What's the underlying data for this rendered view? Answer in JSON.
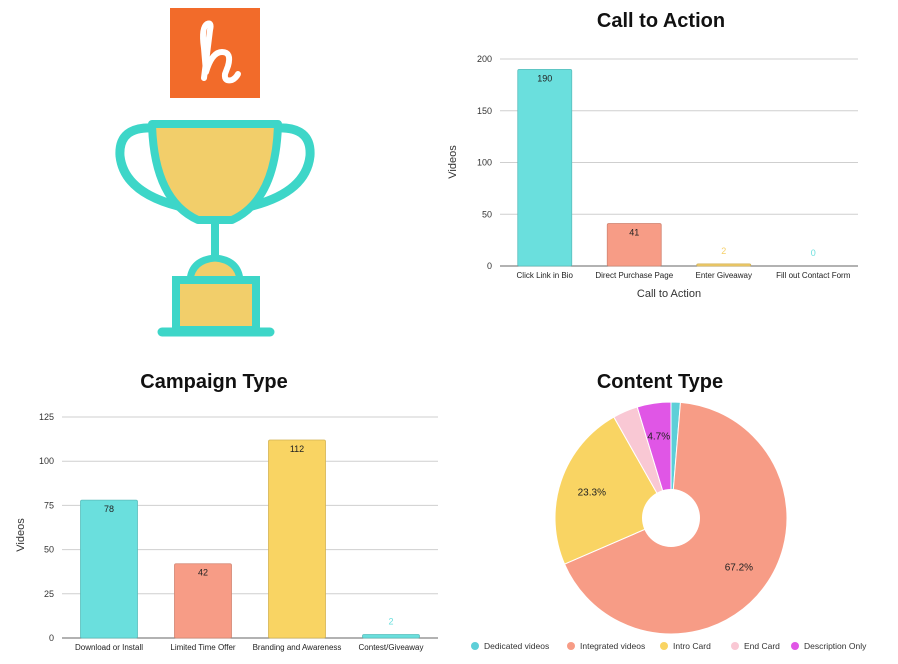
{
  "logo": {
    "letter": "h",
    "brand_color": "#F26B2A"
  },
  "trophy": {
    "icon": "trophy-icon",
    "cup_color": "#F2CE6A",
    "outline_color": "#3DD6C8"
  },
  "chart_data": [
    {
      "id": "call-to-action",
      "type": "bar",
      "title": "Call to Action",
      "xlabel": "Call to Action",
      "ylabel": "Videos",
      "ylim": [
        0,
        200
      ],
      "yticks": [
        0,
        50,
        100,
        150,
        200
      ],
      "grid": true,
      "categories": [
        "Click Link in Bio",
        "Direct Purchase Page",
        "Enter Giveaway",
        "Fill out Contact Form"
      ],
      "values": [
        190,
        41,
        2,
        0
      ],
      "colors": [
        "#6ADFDD",
        "#F79C86",
        "#F5D06A",
        "#6ADFDD"
      ]
    },
    {
      "id": "campaign-type",
      "type": "bar",
      "title": "Campaign Type",
      "xlabel": "",
      "ylabel": "Videos",
      "ylim": [
        0,
        125
      ],
      "yticks": [
        0,
        25,
        50,
        75,
        100,
        125
      ],
      "grid": true,
      "categories": [
        "Download or Install",
        "Limited Time Offer",
        "Branding and Awareness",
        "Contest/Giveaway"
      ],
      "values": [
        78,
        42,
        112,
        2
      ],
      "colors": [
        "#6ADFDD",
        "#F79C86",
        "#F9D463",
        "#6ADFDD"
      ]
    },
    {
      "id": "content-type",
      "type": "pie",
      "title": "Content Type",
      "donut": true,
      "legend_position": "bottom",
      "labels": [
        "Dedicated videos",
        "Integrated videos",
        "Intro Card",
        "End Card",
        "Description Only"
      ],
      "values": [
        1.3,
        67.2,
        23.3,
        3.5,
        4.7
      ],
      "display_labels": [
        "",
        "67.2%",
        "23.3%",
        "",
        "4.7%"
      ],
      "colors": [
        "#5DCFD8",
        "#F79C86",
        "#F9D463",
        "#F9C8D4",
        "#E056E6"
      ]
    }
  ]
}
